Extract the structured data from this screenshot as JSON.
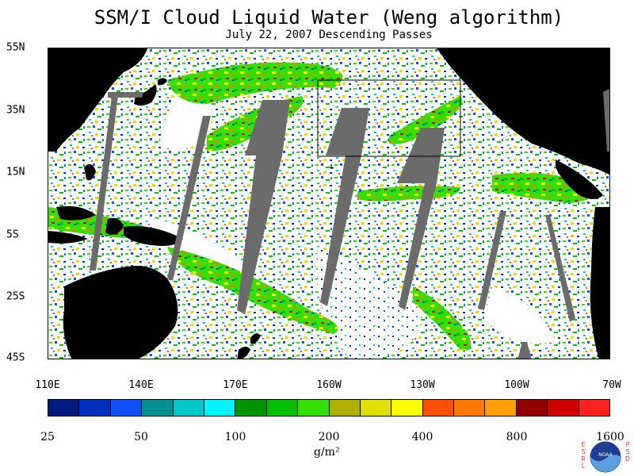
{
  "title": "SSM/I Cloud Liquid Water (Weng algorithm)",
  "subtitle": "July 22, 2007  Descending Passes",
  "lat_labels": [
    "55N",
    "35N",
    "15N",
    "5S",
    "25S",
    "45S"
  ],
  "lon_labels": [
    "110E",
    "140E",
    "170E",
    "160W",
    "130W",
    "100W",
    "70W"
  ],
  "colorbar": {
    "colors": [
      "#001a80",
      "#0030c0",
      "#1050ff",
      "#00908f",
      "#00c8c8",
      "#00f5ff",
      "#009400",
      "#00c000",
      "#33e000",
      "#b0b000",
      "#e0e000",
      "#ffff00",
      "#ff5000",
      "#ff7800",
      "#ffa000",
      "#900000",
      "#d00000",
      "#ff2020"
    ],
    "tick_labels": [
      "25",
      "50",
      "100",
      "200",
      "400",
      "800",
      "1600"
    ],
    "units": "g/m²"
  },
  "logo": {
    "left_letters": [
      "E",
      "S",
      "R",
      "L"
    ],
    "center_text": "NOAA",
    "right_letters": [
      "P",
      "S",
      "D"
    ]
  }
}
